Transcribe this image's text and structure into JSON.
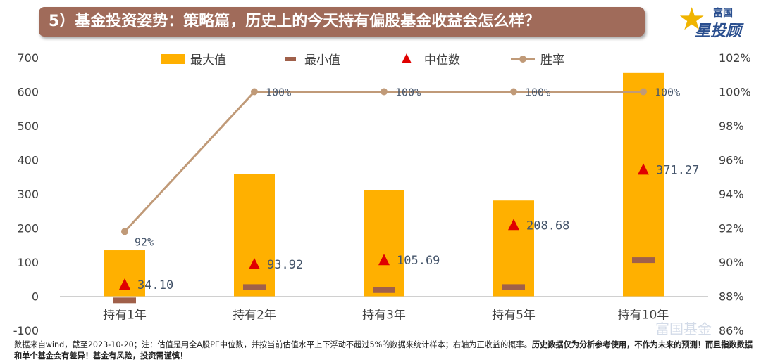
{
  "title": "5）基金投资姿势：策略篇，历史上的今天持有偏股基金收益会怎么样？",
  "logo": {
    "line1": "富国",
    "line2": "星投顾"
  },
  "watermark": "富国基金",
  "footnote": {
    "normal": "数据来自wind，截至2023-10-20；注：估值是用全A股PE中位数，并按当前估值水平上下浮动不超过5%的数据来统计样本；右轴为正收益的概率。",
    "bold": "历史数据仅为分析参考使用，不作为未来的预测！而且指数数据和单个基金会有差异！基金有风险，投资需谨慎！"
  },
  "chart_data": {
    "type": "bar",
    "categories": [
      "持有1年",
      "持有2年",
      "持有3年",
      "持有5年",
      "持有10年"
    ],
    "legend": [
      "最大值",
      "最小值",
      "中位数",
      "胜率"
    ],
    "series": [
      {
        "name": "最大值",
        "type": "bar",
        "values": [
          135,
          358,
          311,
          281,
          655
        ]
      },
      {
        "name": "最小值",
        "type": "marker",
        "values": [
          -12,
          27,
          18,
          27,
          106
        ]
      },
      {
        "name": "中位数",
        "type": "triangle",
        "values": [
          34.1,
          93.92,
          105.69,
          208.68,
          371.27
        ],
        "labels": [
          "34.10",
          "93.92",
          "105.69",
          "208.68",
          "371.27"
        ]
      },
      {
        "name": "胜率",
        "type": "line",
        "axis": "right",
        "values": [
          91.8,
          100,
          100,
          100,
          100
        ],
        "labels": [
          "92%",
          "100%",
          "100%",
          "100%",
          "100%"
        ]
      }
    ],
    "y_left": {
      "min": -100,
      "max": 700,
      "step": 100,
      "ticks": [
        "-100",
        "0",
        "100",
        "200",
        "300",
        "400",
        "500",
        "600",
        "700"
      ]
    },
    "y_right": {
      "min": 86,
      "max": 102,
      "step": 2,
      "ticks": [
        "86%",
        "88%",
        "90%",
        "92%",
        "94%",
        "96%",
        "98%",
        "100%",
        "102%"
      ]
    },
    "colors": {
      "max": "#ffb000",
      "min": "#a0604a",
      "median": "#e00000",
      "win": "#c09a78"
    },
    "grid": false,
    "legend_position": "top"
  }
}
